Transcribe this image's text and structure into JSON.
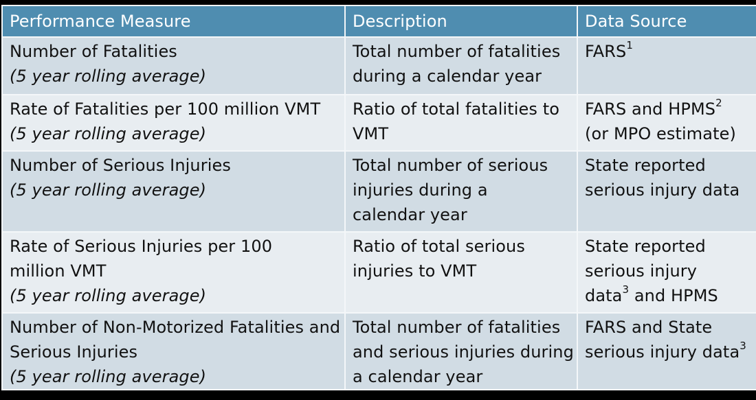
{
  "table": {
    "headers": [
      "Performance Measure",
      "Description",
      "Data Source"
    ],
    "colors": {
      "header_bg": "#4f8db0",
      "row_odd_bg": "#d1dce4",
      "row_even_bg": "#e8edf1",
      "border": "#f4f7f9"
    },
    "rows": [
      {
        "measure": [
          "Number of Fatalities"
        ],
        "measure_note": "(5 year rolling average)",
        "description": [
          "Total number of fatalities",
          "during a calendar year"
        ],
        "source": [
          {
            "text": "FARS",
            "sup": "1"
          }
        ]
      },
      {
        "measure": [
          "Rate of Fatalities per 100 million VMT"
        ],
        "measure_note": "(5 year rolling average)",
        "description": [
          "Ratio of total fatalities to",
          "VMT"
        ],
        "source": [
          {
            "text": "FARS and HPMS",
            "sup": "2"
          },
          {
            "text": "(or MPO estimate)"
          }
        ]
      },
      {
        "measure": [
          "Number of Serious Injuries"
        ],
        "measure_note": "(5 year rolling average)",
        "description": [
          "Total number of serious",
          "injuries during a",
          "calendar year"
        ],
        "source": [
          {
            "text": "State reported"
          },
          {
            "text": "serious injury data"
          }
        ]
      },
      {
        "measure": [
          "Rate of Serious Injuries per 100",
          "million VMT"
        ],
        "measure_note": "(5 year rolling average)",
        "description": [
          "Ratio of total serious",
          "injuries to VMT"
        ],
        "source": [
          {
            "text": "State reported"
          },
          {
            "text": "serious injury"
          },
          {
            "text": "data",
            "sup": "3",
            "after": " and HPMS"
          }
        ]
      },
      {
        "measure": [
          "Number of Non-Motorized Fatalities and",
          "Serious Injuries"
        ],
        "measure_note": "(5 year rolling average)",
        "description": [
          "Total number of fatalities",
          "and serious injuries during",
          "a calendar year"
        ],
        "source": [
          {
            "text": "FARS and State"
          },
          {
            "text": "serious injury data",
            "sup": "3"
          }
        ]
      }
    ]
  }
}
